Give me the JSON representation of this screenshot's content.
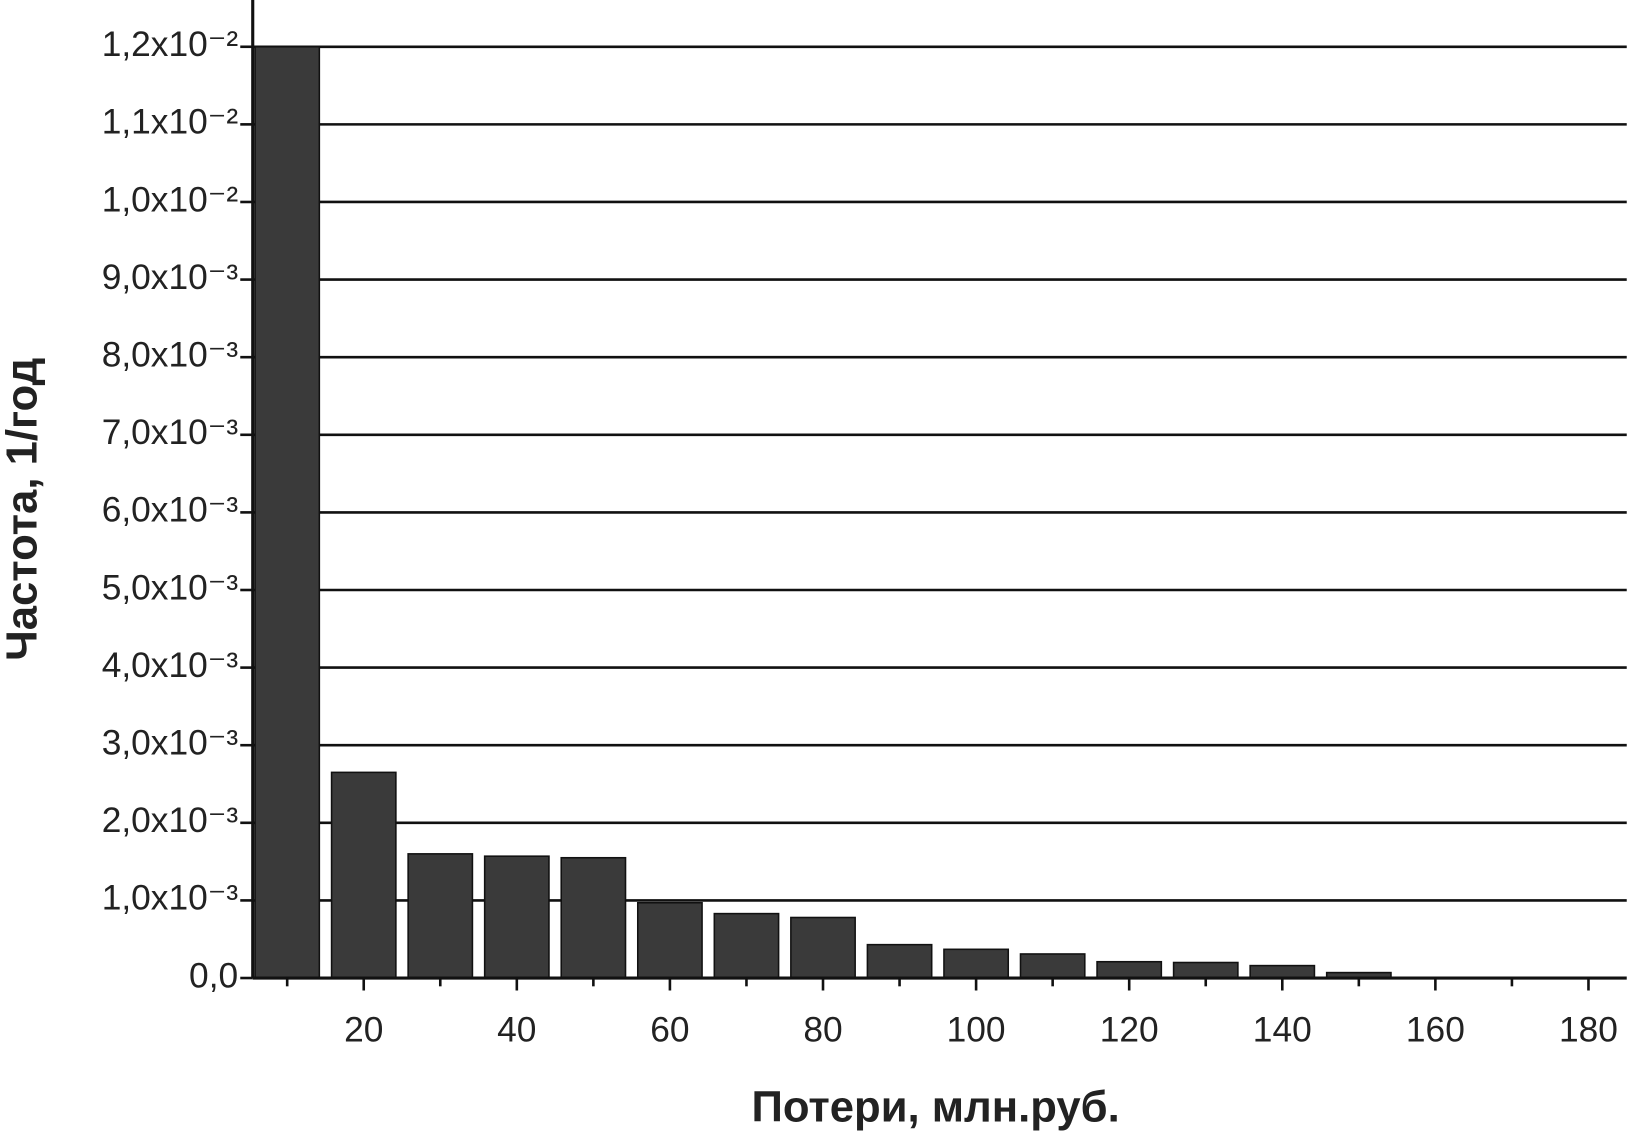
{
  "chart_data": {
    "type": "bar",
    "xlabel": "Потери, млн.руб.",
    "ylabel": "Частота, 1/год",
    "x": [
      10,
      20,
      30,
      40,
      50,
      60,
      70,
      80,
      90,
      100,
      110,
      120,
      130,
      140,
      150
    ],
    "values": [
      0.012,
      0.00265,
      0.0016,
      0.00157,
      0.00155,
      0.00097,
      0.00083,
      0.00078,
      0.00043,
      0.00037,
      0.00031,
      0.00021,
      0.0002,
      0.00016,
      7e-05
    ],
    "color": "#3a3a3a",
    "xlim": [
      5.5,
      185
    ],
    "xticks": [
      20,
      40,
      60,
      80,
      100,
      120,
      140,
      160,
      180
    ],
    "xminorticks": [
      10,
      30,
      50,
      70,
      90,
      110,
      130,
      150,
      170
    ],
    "ylim": [
      0,
      0.012
    ],
    "yticks": [
      {
        "value": 0,
        "label": "0,0"
      },
      {
        "value": 0.001,
        "label": "1,0x10⁻³"
      },
      {
        "value": 0.002,
        "label": "2,0x10⁻³"
      },
      {
        "value": 0.003,
        "label": "3,0x10⁻³"
      },
      {
        "value": 0.004,
        "label": "4,0x10⁻³"
      },
      {
        "value": 0.005,
        "label": "5,0x10⁻³"
      },
      {
        "value": 0.006,
        "label": "6,0x10⁻³"
      },
      {
        "value": 0.007,
        "label": "7,0x10⁻³"
      },
      {
        "value": 0.008,
        "label": "8,0x10⁻³"
      },
      {
        "value": 0.009,
        "label": "9,0x10⁻³"
      },
      {
        "value": 0.01,
        "label": "1,0x10⁻²"
      },
      {
        "value": 0.011,
        "label": "1,1x10⁻²"
      },
      {
        "value": 0.012,
        "label": "1,2x10⁻²"
      }
    ],
    "grid": true
  }
}
